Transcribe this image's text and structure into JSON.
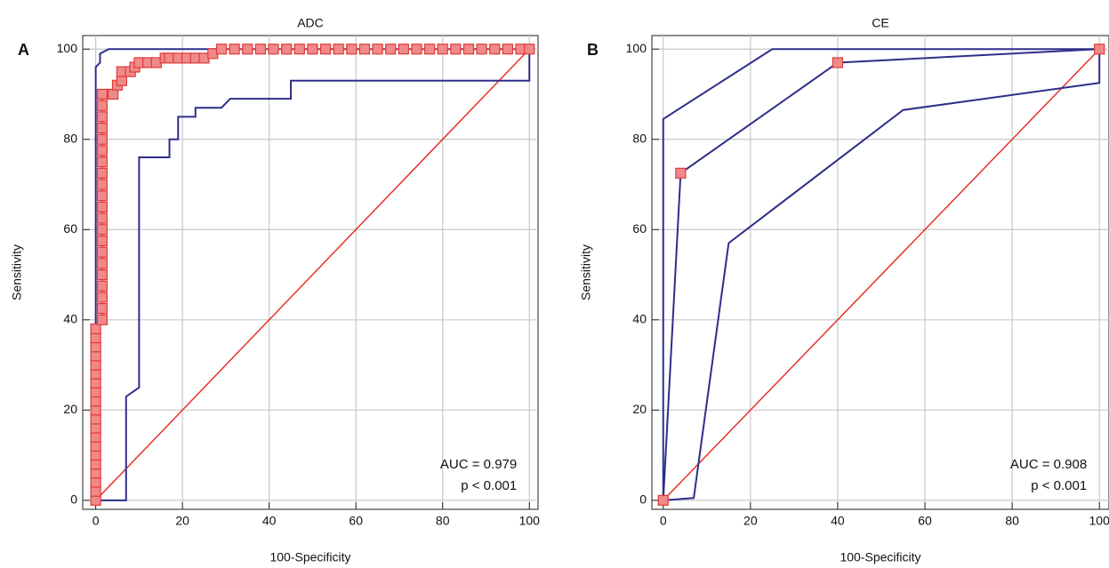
{
  "chart_data": [
    {
      "type": "line",
      "panel_label": "A",
      "title": "ADC",
      "xlabel": "100-Specificity",
      "ylabel": "Sensitivity",
      "annotations": [
        "AUC = 0.979",
        "p < 0.001"
      ],
      "xlim": [
        -3,
        102
      ],
      "ylim": [
        -2,
        103
      ],
      "xticks": [
        0,
        20,
        40,
        60,
        80,
        100
      ],
      "yticks": [
        0,
        20,
        40,
        60,
        80,
        100
      ],
      "grid": true,
      "series": [
        {
          "color": "#e8302a",
          "width": 1.5,
          "x": [
            0,
            100
          ],
          "values": [
            0,
            100
          ]
        },
        {
          "color": "#2e2e8a",
          "width": 2,
          "x": [
            0,
            0,
            1,
            1,
            3,
            100,
            100
          ],
          "values": [
            0,
            96,
            97,
            99,
            100,
            100,
            100
          ]
        },
        {
          "color": "#2e2e8a",
          "width": 2,
          "x": [
            0,
            7,
            7,
            10,
            10,
            17,
            17,
            19,
            19,
            23,
            23,
            29,
            31,
            45,
            45,
            100,
            100
          ],
          "values": [
            0,
            0,
            23,
            25,
            76,
            76,
            80,
            80,
            85,
            85,
            87,
            87,
            89,
            89,
            93,
            93,
            100
          ]
        },
        {
          "color": "#e8302a",
          "width": 1.5,
          "marker": "square",
          "x": [
            0,
            0,
            0,
            0,
            0,
            0,
            0,
            0,
            0,
            0,
            0,
            0,
            0,
            0,
            0,
            0,
            0,
            0,
            0,
            0,
            1.5,
            1.5,
            1.5,
            1.5,
            1.5,
            1.5,
            1.5,
            1.5,
            1.5,
            1.5,
            1.5,
            1.5,
            1.5,
            1.5,
            1.5,
            1.5,
            1.5,
            1.5,
            1.5,
            1.5,
            1.5,
            4,
            5,
            6,
            6,
            8,
            9,
            10,
            12,
            14,
            16,
            17,
            19,
            21,
            23,
            25,
            27,
            29,
            32,
            35,
            38,
            41,
            44,
            47,
            50,
            53,
            56,
            59,
            62,
            65,
            68,
            71,
            74,
            77,
            80,
            83,
            86,
            89,
            92,
            95,
            98,
            100
          ],
          "values": [
            0,
            2,
            4,
            6,
            8,
            10,
            12,
            14,
            16,
            18,
            20,
            22,
            24,
            26,
            28,
            30,
            32,
            34,
            36,
            38,
            40,
            42.5,
            45,
            47.5,
            50,
            52.5,
            55,
            57.5,
            60,
            62.5,
            65,
            67.5,
            70,
            72.5,
            75,
            77.5,
            80,
            82.5,
            85,
            87.5,
            90,
            90,
            92,
            93,
            95,
            95,
            96,
            97,
            97,
            97,
            98,
            98,
            98,
            98,
            98,
            98,
            99,
            100,
            100,
            100,
            100,
            100,
            100,
            100,
            100,
            100,
            100,
            100,
            100,
            100,
            100,
            100,
            100,
            100,
            100,
            100,
            100,
            100,
            100,
            100,
            100,
            100
          ]
        }
      ]
    },
    {
      "type": "line",
      "panel_label": "B",
      "title": "CE",
      "xlabel": "100-Specificity",
      "ylabel": "Sensitivity",
      "annotations": [
        "AUC = 0.908",
        "p < 0.001"
      ],
      "xlim": [
        -2.6,
        102.2
      ],
      "ylim": [
        -2,
        103
      ],
      "xticks": [
        0,
        20,
        40,
        60,
        80,
        100
      ],
      "yticks": [
        0,
        20,
        40,
        60,
        80,
        100
      ],
      "grid": true,
      "series": [
        {
          "color": "#e8302a",
          "width": 1.5,
          "x": [
            0,
            100
          ],
          "values": [
            0,
            100
          ]
        },
        {
          "color": "#2e2e8a",
          "width": 2,
          "x": [
            0,
            0,
            25,
            100,
            100
          ],
          "values": [
            0,
            84.5,
            100,
            100,
            100
          ]
        },
        {
          "color": "#2e2e8a",
          "width": 2,
          "x": [
            0,
            7,
            15,
            55,
            100,
            100
          ],
          "values": [
            0,
            0.5,
            57,
            86.5,
            92.5,
            100
          ]
        },
        {
          "color": "#2e2e8a",
          "width": 2,
          "marker": "square",
          "x": [
            0,
            4,
            40,
            100
          ],
          "values": [
            0,
            72.5,
            97,
            100
          ]
        }
      ]
    }
  ]
}
